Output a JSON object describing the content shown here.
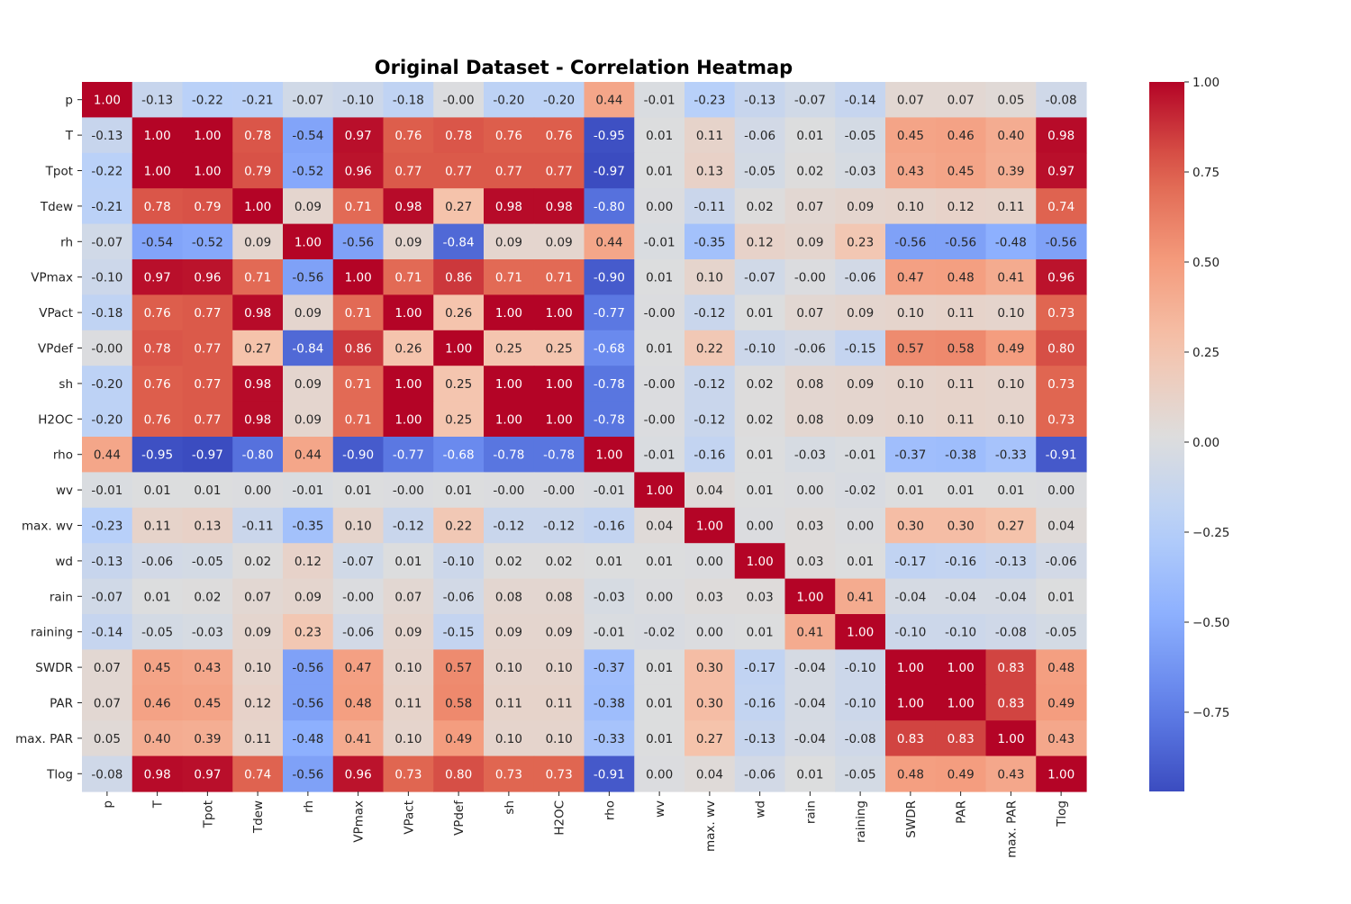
{
  "chart_data": {
    "type": "heatmap",
    "title": "Original Dataset - Correlation Heatmap",
    "xlabel": "",
    "ylabel": "",
    "colormap": "coolwarm",
    "vmin": -0.97,
    "vmax": 1.0,
    "annotation_format": "0.00",
    "colorbar_ticks": [
      "1.00",
      "0.75",
      "0.50",
      "0.25",
      "0.00",
      "−0.25",
      "−0.50",
      "−0.75"
    ],
    "colorbar_tick_values": [
      1.0,
      0.75,
      0.5,
      0.25,
      0.0,
      -0.25,
      -0.5,
      -0.75
    ],
    "rows": [
      "p",
      "T",
      "Tpot",
      "Tdew",
      "rh",
      "VPmax",
      "VPact",
      "VPdef",
      "sh",
      "H2OC",
      "rho",
      "wv",
      "max. wv",
      "wd",
      "rain",
      "raining",
      "SWDR",
      "PAR",
      "max. PAR",
      "Tlog"
    ],
    "columns": [
      "p",
      "T",
      "Tpot",
      "Tdew",
      "rh",
      "VPmax",
      "VPact",
      "VPdef",
      "sh",
      "H2OC",
      "rho",
      "wv",
      "max. wv",
      "wd",
      "rain",
      "raining",
      "SWDR",
      "PAR",
      "max. PAR",
      "Tlog"
    ],
    "values": [
      [
        "1.00",
        "-0.13",
        "-0.22",
        "-0.21",
        "-0.07",
        "-0.10",
        "-0.18",
        "-0.00",
        "-0.20",
        "-0.20",
        "0.44",
        "-0.01",
        "-0.23",
        "-0.13",
        "-0.07",
        "-0.14",
        "0.07",
        "0.07",
        "0.05",
        "-0.08"
      ],
      [
        "-0.13",
        "1.00",
        "1.00",
        "0.78",
        "-0.54",
        "0.97",
        "0.76",
        "0.78",
        "0.76",
        "0.76",
        "-0.95",
        "0.01",
        "0.11",
        "-0.06",
        "0.01",
        "-0.05",
        "0.45",
        "0.46",
        "0.40",
        "0.98"
      ],
      [
        "-0.22",
        "1.00",
        "1.00",
        "0.79",
        "-0.52",
        "0.96",
        "0.77",
        "0.77",
        "0.77",
        "0.77",
        "-0.97",
        "0.01",
        "0.13",
        "-0.05",
        "0.02",
        "-0.03",
        "0.43",
        "0.45",
        "0.39",
        "0.97"
      ],
      [
        "-0.21",
        "0.78",
        "0.79",
        "1.00",
        "0.09",
        "0.71",
        "0.98",
        "0.27",
        "0.98",
        "0.98",
        "-0.80",
        "0.00",
        "-0.11",
        "0.02",
        "0.07",
        "0.09",
        "0.10",
        "0.12",
        "0.11",
        "0.74"
      ],
      [
        "-0.07",
        "-0.54",
        "-0.52",
        "0.09",
        "1.00",
        "-0.56",
        "0.09",
        "-0.84",
        "0.09",
        "0.09",
        "0.44",
        "-0.01",
        "-0.35",
        "0.12",
        "0.09",
        "0.23",
        "-0.56",
        "-0.56",
        "-0.48",
        "-0.56"
      ],
      [
        "-0.10",
        "0.97",
        "0.96",
        "0.71",
        "-0.56",
        "1.00",
        "0.71",
        "0.86",
        "0.71",
        "0.71",
        "-0.90",
        "0.01",
        "0.10",
        "-0.07",
        "-0.00",
        "-0.06",
        "0.47",
        "0.48",
        "0.41",
        "0.96"
      ],
      [
        "-0.18",
        "0.76",
        "0.77",
        "0.98",
        "0.09",
        "0.71",
        "1.00",
        "0.26",
        "1.00",
        "1.00",
        "-0.77",
        "-0.00",
        "-0.12",
        "0.01",
        "0.07",
        "0.09",
        "0.10",
        "0.11",
        "0.10",
        "0.73"
      ],
      [
        "-0.00",
        "0.78",
        "0.77",
        "0.27",
        "-0.84",
        "0.86",
        "0.26",
        "1.00",
        "0.25",
        "0.25",
        "-0.68",
        "0.01",
        "0.22",
        "-0.10",
        "-0.06",
        "-0.15",
        "0.57",
        "0.58",
        "0.49",
        "0.80"
      ],
      [
        "-0.20",
        "0.76",
        "0.77",
        "0.98",
        "0.09",
        "0.71",
        "1.00",
        "0.25",
        "1.00",
        "1.00",
        "-0.78",
        "-0.00",
        "-0.12",
        "0.02",
        "0.08",
        "0.09",
        "0.10",
        "0.11",
        "0.10",
        "0.73"
      ],
      [
        "-0.20",
        "0.76",
        "0.77",
        "0.98",
        "0.09",
        "0.71",
        "1.00",
        "0.25",
        "1.00",
        "1.00",
        "-0.78",
        "-0.00",
        "-0.12",
        "0.02",
        "0.08",
        "0.09",
        "0.10",
        "0.11",
        "0.10",
        "0.73"
      ],
      [
        "0.44",
        "-0.95",
        "-0.97",
        "-0.80",
        "0.44",
        "-0.90",
        "-0.77",
        "-0.68",
        "-0.78",
        "-0.78",
        "1.00",
        "-0.01",
        "-0.16",
        "0.01",
        "-0.03",
        "-0.01",
        "-0.37",
        "-0.38",
        "-0.33",
        "-0.91"
      ],
      [
        "-0.01",
        "0.01",
        "0.01",
        "0.00",
        "-0.01",
        "0.01",
        "-0.00",
        "0.01",
        "-0.00",
        "-0.00",
        "-0.01",
        "1.00",
        "0.04",
        "0.01",
        "0.00",
        "-0.02",
        "0.01",
        "0.01",
        "0.01",
        "0.00"
      ],
      [
        "-0.23",
        "0.11",
        "0.13",
        "-0.11",
        "-0.35",
        "0.10",
        "-0.12",
        "0.22",
        "-0.12",
        "-0.12",
        "-0.16",
        "0.04",
        "1.00",
        "0.00",
        "0.03",
        "0.00",
        "0.30",
        "0.30",
        "0.27",
        "0.04"
      ],
      [
        "-0.13",
        "-0.06",
        "-0.05",
        "0.02",
        "0.12",
        "-0.07",
        "0.01",
        "-0.10",
        "0.02",
        "0.02",
        "0.01",
        "0.01",
        "0.00",
        "1.00",
        "0.03",
        "0.01",
        "-0.17",
        "-0.16",
        "-0.13",
        "-0.06"
      ],
      [
        "-0.07",
        "0.01",
        "0.02",
        "0.07",
        "0.09",
        "-0.00",
        "0.07",
        "-0.06",
        "0.08",
        "0.08",
        "-0.03",
        "0.00",
        "0.03",
        "0.03",
        "1.00",
        "0.41",
        "-0.04",
        "-0.04",
        "-0.04",
        "0.01"
      ],
      [
        "-0.14",
        "-0.05",
        "-0.03",
        "0.09",
        "0.23",
        "-0.06",
        "0.09",
        "-0.15",
        "0.09",
        "0.09",
        "-0.01",
        "-0.02",
        "0.00",
        "0.01",
        "0.41",
        "1.00",
        "-0.10",
        "-0.10",
        "-0.08",
        "-0.05"
      ],
      [
        "0.07",
        "0.45",
        "0.43",
        "0.10",
        "-0.56",
        "0.47",
        "0.10",
        "0.57",
        "0.10",
        "0.10",
        "-0.37",
        "0.01",
        "0.30",
        "-0.17",
        "-0.04",
        "-0.10",
        "1.00",
        "1.00",
        "0.83",
        "0.48"
      ],
      [
        "0.07",
        "0.46",
        "0.45",
        "0.12",
        "-0.56",
        "0.48",
        "0.11",
        "0.58",
        "0.11",
        "0.11",
        "-0.38",
        "0.01",
        "0.30",
        "-0.16",
        "-0.04",
        "-0.10",
        "1.00",
        "1.00",
        "0.83",
        "0.49"
      ],
      [
        "0.05",
        "0.40",
        "0.39",
        "0.11",
        "-0.48",
        "0.41",
        "0.10",
        "0.49",
        "0.10",
        "0.10",
        "-0.33",
        "0.01",
        "0.27",
        "-0.13",
        "-0.04",
        "-0.08",
        "0.83",
        "0.83",
        "1.00",
        "0.43"
      ],
      [
        "-0.08",
        "0.98",
        "0.97",
        "0.74",
        "-0.56",
        "0.96",
        "0.73",
        "0.80",
        "0.73",
        "0.73",
        "-0.91",
        "0.00",
        "0.04",
        "-0.06",
        "0.01",
        "-0.05",
        "0.48",
        "0.49",
        "0.43",
        "1.00"
      ]
    ]
  }
}
